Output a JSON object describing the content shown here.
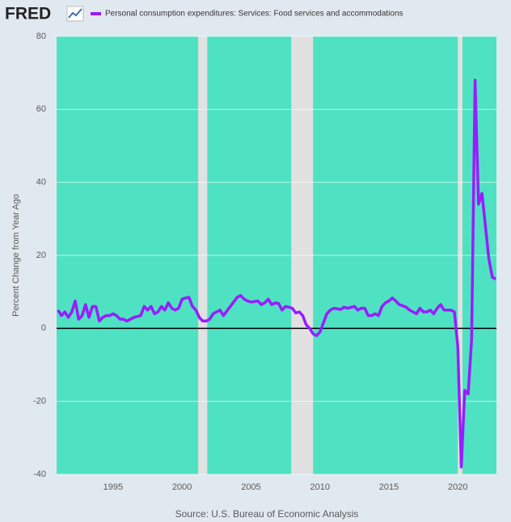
{
  "chart_data": {
    "type": "line",
    "logo": "FRED",
    "y_label": "Percent Change from Year Ago",
    "source": "Source: U.S. Bureau of Economic Analysis",
    "x": [
      1991,
      1991.25,
      1991.5,
      1991.75,
      1992,
      1992.25,
      1992.5,
      1992.75,
      1993,
      1993.25,
      1993.5,
      1993.75,
      1994,
      1994.25,
      1994.5,
      1994.75,
      1995,
      1995.25,
      1995.5,
      1995.75,
      1996,
      1996.5,
      1997,
      1997.25,
      1997.5,
      1997.75,
      1998,
      1998.25,
      1998.5,
      1998.75,
      1999,
      1999.25,
      1999.5,
      1999.75,
      2000,
      2000.25,
      2000.5,
      2000.75,
      2001,
      2001.25,
      2001.5,
      2001.75,
      2002,
      2002.25,
      2002.5,
      2002.75,
      2003,
      2003.5,
      2004,
      2004.25,
      2004.5,
      2004.75,
      2005,
      2005.5,
      2005.75,
      2006,
      2006.25,
      2006.5,
      2006.75,
      2007,
      2007.25,
      2007.5,
      2007.75,
      2008,
      2008.25,
      2008.5,
      2008.75,
      2009,
      2009.25,
      2009.5,
      2009.75,
      2010,
      2010.25,
      2010.5,
      2010.75,
      2011,
      2011.5,
      2011.75,
      2012,
      2012.5,
      2012.75,
      2013,
      2013.25,
      2013.5,
      2013.75,
      2014,
      2014.25,
      2014.5,
      2014.75,
      2015,
      2015.25,
      2015.5,
      2015.75,
      2016,
      2016.25,
      2016.5,
      2016.75,
      2017,
      2017.25,
      2017.5,
      2017.75,
      2018,
      2018.25,
      2018.5,
      2018.75,
      2019,
      2019.25,
      2019.5,
      2019.75,
      2020,
      2020.25,
      2020.5,
      2020.75,
      2021,
      2021.25,
      2021.5,
      2021.75,
      2022,
      2022.25,
      2022.5,
      2022.75
    ],
    "series": [
      {
        "name": "Personal consumption expenditures: Services: Food services and accommodations",
        "color": "#9a1cff",
        "values": [
          5,
          3.5,
          4.5,
          3,
          4.5,
          7.5,
          2.5,
          3.5,
          6.5,
          3,
          6,
          6,
          2,
          3,
          3.5,
          3.5,
          4,
          3.5,
          2.5,
          2.5,
          2,
          3,
          3.5,
          6,
          5,
          6,
          4,
          4.5,
          6,
          5,
          7,
          5.5,
          5,
          5.5,
          8,
          8.3,
          8.5,
          6,
          5,
          3,
          2,
          2,
          2.5,
          4,
          4.5,
          5,
          3.5,
          6,
          8.5,
          9,
          8,
          7.5,
          7.2,
          7.5,
          6.5,
          7,
          8,
          6.5,
          7,
          6.8,
          5,
          6,
          5.8,
          5.5,
          4.2,
          4.5,
          3.5,
          1,
          0,
          -1.5,
          -2,
          -1,
          1.5,
          4,
          5,
          5.5,
          5.2,
          5.8,
          5.5,
          6,
          5,
          5.5,
          5.5,
          3.5,
          3.5,
          4,
          3.5,
          6,
          7,
          7.5,
          8.3,
          7.5,
          6.5,
          6.2,
          5.8,
          5,
          4.5,
          4,
          5.5,
          4.5,
          4.5,
          5,
          4,
          5.5,
          6.5,
          5,
          5,
          5,
          4.5,
          -5,
          -38,
          -17,
          -18,
          -3,
          68,
          34,
          37,
          28,
          19,
          14,
          13.5
        ]
      }
    ],
    "recessions": [
      [
        2001.17,
        2001.83
      ],
      [
        2007.92,
        2009.5
      ],
      [
        2020.0,
        2020.33
      ]
    ],
    "xlim": [
      1990.9,
      2022.8
    ],
    "xticks": [
      1995,
      2000,
      2005,
      2010,
      2015,
      2020
    ],
    "ylim": [
      -40,
      80
    ],
    "yticks": [
      -40,
      -20,
      0,
      20,
      40,
      60,
      80
    ],
    "grid": true,
    "plot_color": "#4fe2c2",
    "recession_color": "#e1e1e1"
  }
}
